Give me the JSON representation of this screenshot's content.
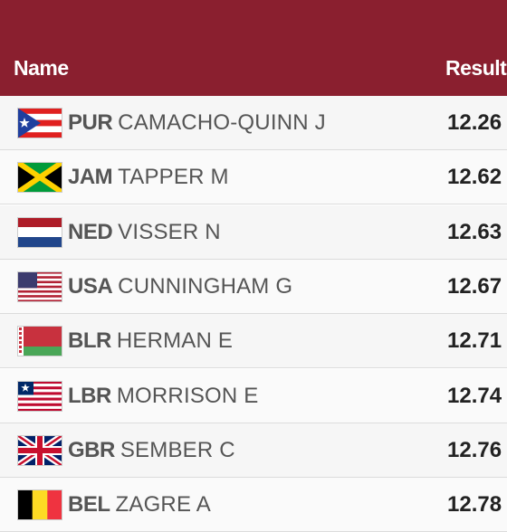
{
  "table": {
    "header": [
      "Name",
      "Result"
    ],
    "rows": [
      {
        "country": "PUR",
        "name": "CAMACHO-QUINN J",
        "result": "12.26"
      },
      {
        "country": "JAM",
        "name": "TAPPER M",
        "result": "12.62"
      },
      {
        "country": "NED",
        "name": "VISSER N",
        "result": "12.63"
      },
      {
        "country": "USA",
        "name": "CUNNINGHAM G",
        "result": "12.67"
      },
      {
        "country": "BLR",
        "name": "HERMAN E",
        "result": "12.71"
      },
      {
        "country": "LBR",
        "name": "MORRISON E",
        "result": "12.74"
      },
      {
        "country": "GBR",
        "name": "SEMBER C",
        "result": "12.76"
      },
      {
        "country": "BEL",
        "name": "ZAGRE A",
        "result": "12.78"
      }
    ]
  }
}
